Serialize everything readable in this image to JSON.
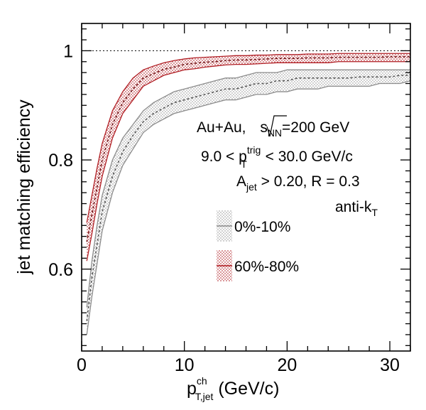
{
  "chart_data": {
    "type": "area",
    "xlabel": {
      "main": "p",
      "sup": "ch",
      "sub": "T,jet",
      "rest": " (GeV/c)"
    },
    "ylabel": "jet matching efficiency",
    "xlim": [
      0,
      32
    ],
    "ylim": [
      0.45,
      1.05
    ],
    "x_ticks": [
      0,
      10,
      20,
      30
    ],
    "x_tick_labels": [
      "0",
      "10",
      "20",
      "30"
    ],
    "y_ticks": [
      0.6,
      0.8,
      1.0
    ],
    "y_tick_labels": [
      "0.6",
      "0.8",
      "1"
    ],
    "reference_line": 1.0,
    "annotations": {
      "line1": {
        "a": "Au+Au, ",
        "b": "s",
        "b_sub": "NN",
        "c": "=200 GeV"
      },
      "line2": {
        "a": "9.0 < p",
        "sup": "trig",
        "sub": "T",
        "c": " < 30.0 GeV/c"
      },
      "line3": {
        "a": "A",
        "sub": "jet",
        "c": " > 0.20, R = 0.3"
      },
      "line4": {
        "a": "anti-k",
        "sub": "T"
      }
    },
    "series": [
      {
        "name": "0%-10%",
        "color": "#8c8c8c",
        "x": [
          0.5,
          1,
          1.5,
          2,
          3,
          4,
          5,
          6,
          7,
          8,
          9,
          10,
          11,
          12,
          13,
          14,
          15,
          16,
          17,
          18,
          19,
          20,
          21,
          22,
          23,
          24,
          25,
          26,
          27,
          28,
          29,
          30,
          31,
          32
        ],
        "lower": [
          0.48,
          0.55,
          0.61,
          0.67,
          0.74,
          0.79,
          0.82,
          0.85,
          0.865,
          0.875,
          0.885,
          0.89,
          0.895,
          0.9,
          0.905,
          0.91,
          0.91,
          0.915,
          0.92,
          0.92,
          0.925,
          0.925,
          0.93,
          0.93,
          0.93,
          0.935,
          0.935,
          0.935,
          0.935,
          0.935,
          0.94,
          0.94,
          0.94,
          0.945
        ],
        "mean": [
          0.505,
          0.585,
          0.645,
          0.705,
          0.77,
          0.815,
          0.845,
          0.87,
          0.885,
          0.895,
          0.905,
          0.91,
          0.915,
          0.92,
          0.925,
          0.93,
          0.93,
          0.935,
          0.94,
          0.94,
          0.945,
          0.945,
          0.95,
          0.95,
          0.95,
          0.95,
          0.95,
          0.95,
          0.952,
          0.952,
          0.952,
          0.952,
          0.955,
          0.955
        ],
        "upper": [
          0.53,
          0.615,
          0.68,
          0.735,
          0.8,
          0.84,
          0.865,
          0.89,
          0.905,
          0.915,
          0.925,
          0.93,
          0.935,
          0.94,
          0.945,
          0.95,
          0.95,
          0.955,
          0.96,
          0.96,
          0.96,
          0.965,
          0.965,
          0.965,
          0.965,
          0.965,
          0.965,
          0.965,
          0.965,
          0.965,
          0.965,
          0.965,
          0.965,
          0.965
        ]
      },
      {
        "name": "60%-80%",
        "color": "#b01e24",
        "x": [
          0.5,
          1,
          1.5,
          2,
          3,
          4,
          5,
          6,
          7,
          8,
          9,
          10,
          11,
          12,
          13,
          14,
          15,
          16,
          17,
          18,
          19,
          20,
          21,
          22,
          23,
          24,
          25,
          26,
          27,
          28,
          29,
          30,
          31,
          32
        ],
        "lower": [
          0.615,
          0.665,
          0.72,
          0.77,
          0.84,
          0.885,
          0.91,
          0.935,
          0.945,
          0.955,
          0.96,
          0.965,
          0.967,
          0.97,
          0.972,
          0.974,
          0.975,
          0.975,
          0.976,
          0.977,
          0.978,
          0.978,
          0.978,
          0.978,
          0.978,
          0.978,
          0.98,
          0.98,
          0.98,
          0.98,
          0.98,
          0.98,
          0.98,
          0.98
        ],
        "mean": [
          0.65,
          0.7,
          0.75,
          0.8,
          0.865,
          0.905,
          0.93,
          0.95,
          0.958,
          0.966,
          0.97,
          0.975,
          0.977,
          0.979,
          0.98,
          0.982,
          0.983,
          0.983,
          0.984,
          0.985,
          0.986,
          0.986,
          0.986,
          0.987,
          0.987,
          0.987,
          0.988,
          0.988,
          0.988,
          0.988,
          0.988,
          0.989,
          0.989,
          0.989
        ],
        "upper": [
          0.685,
          0.735,
          0.785,
          0.83,
          0.89,
          0.925,
          0.95,
          0.965,
          0.972,
          0.978,
          0.982,
          0.985,
          0.987,
          0.988,
          0.989,
          0.99,
          0.991,
          0.991,
          0.992,
          0.992,
          0.993,
          0.993,
          0.993,
          0.994,
          0.994,
          0.994,
          0.995,
          0.995,
          0.995,
          0.995,
          0.995,
          0.995,
          0.995,
          0.995
        ]
      }
    ]
  }
}
